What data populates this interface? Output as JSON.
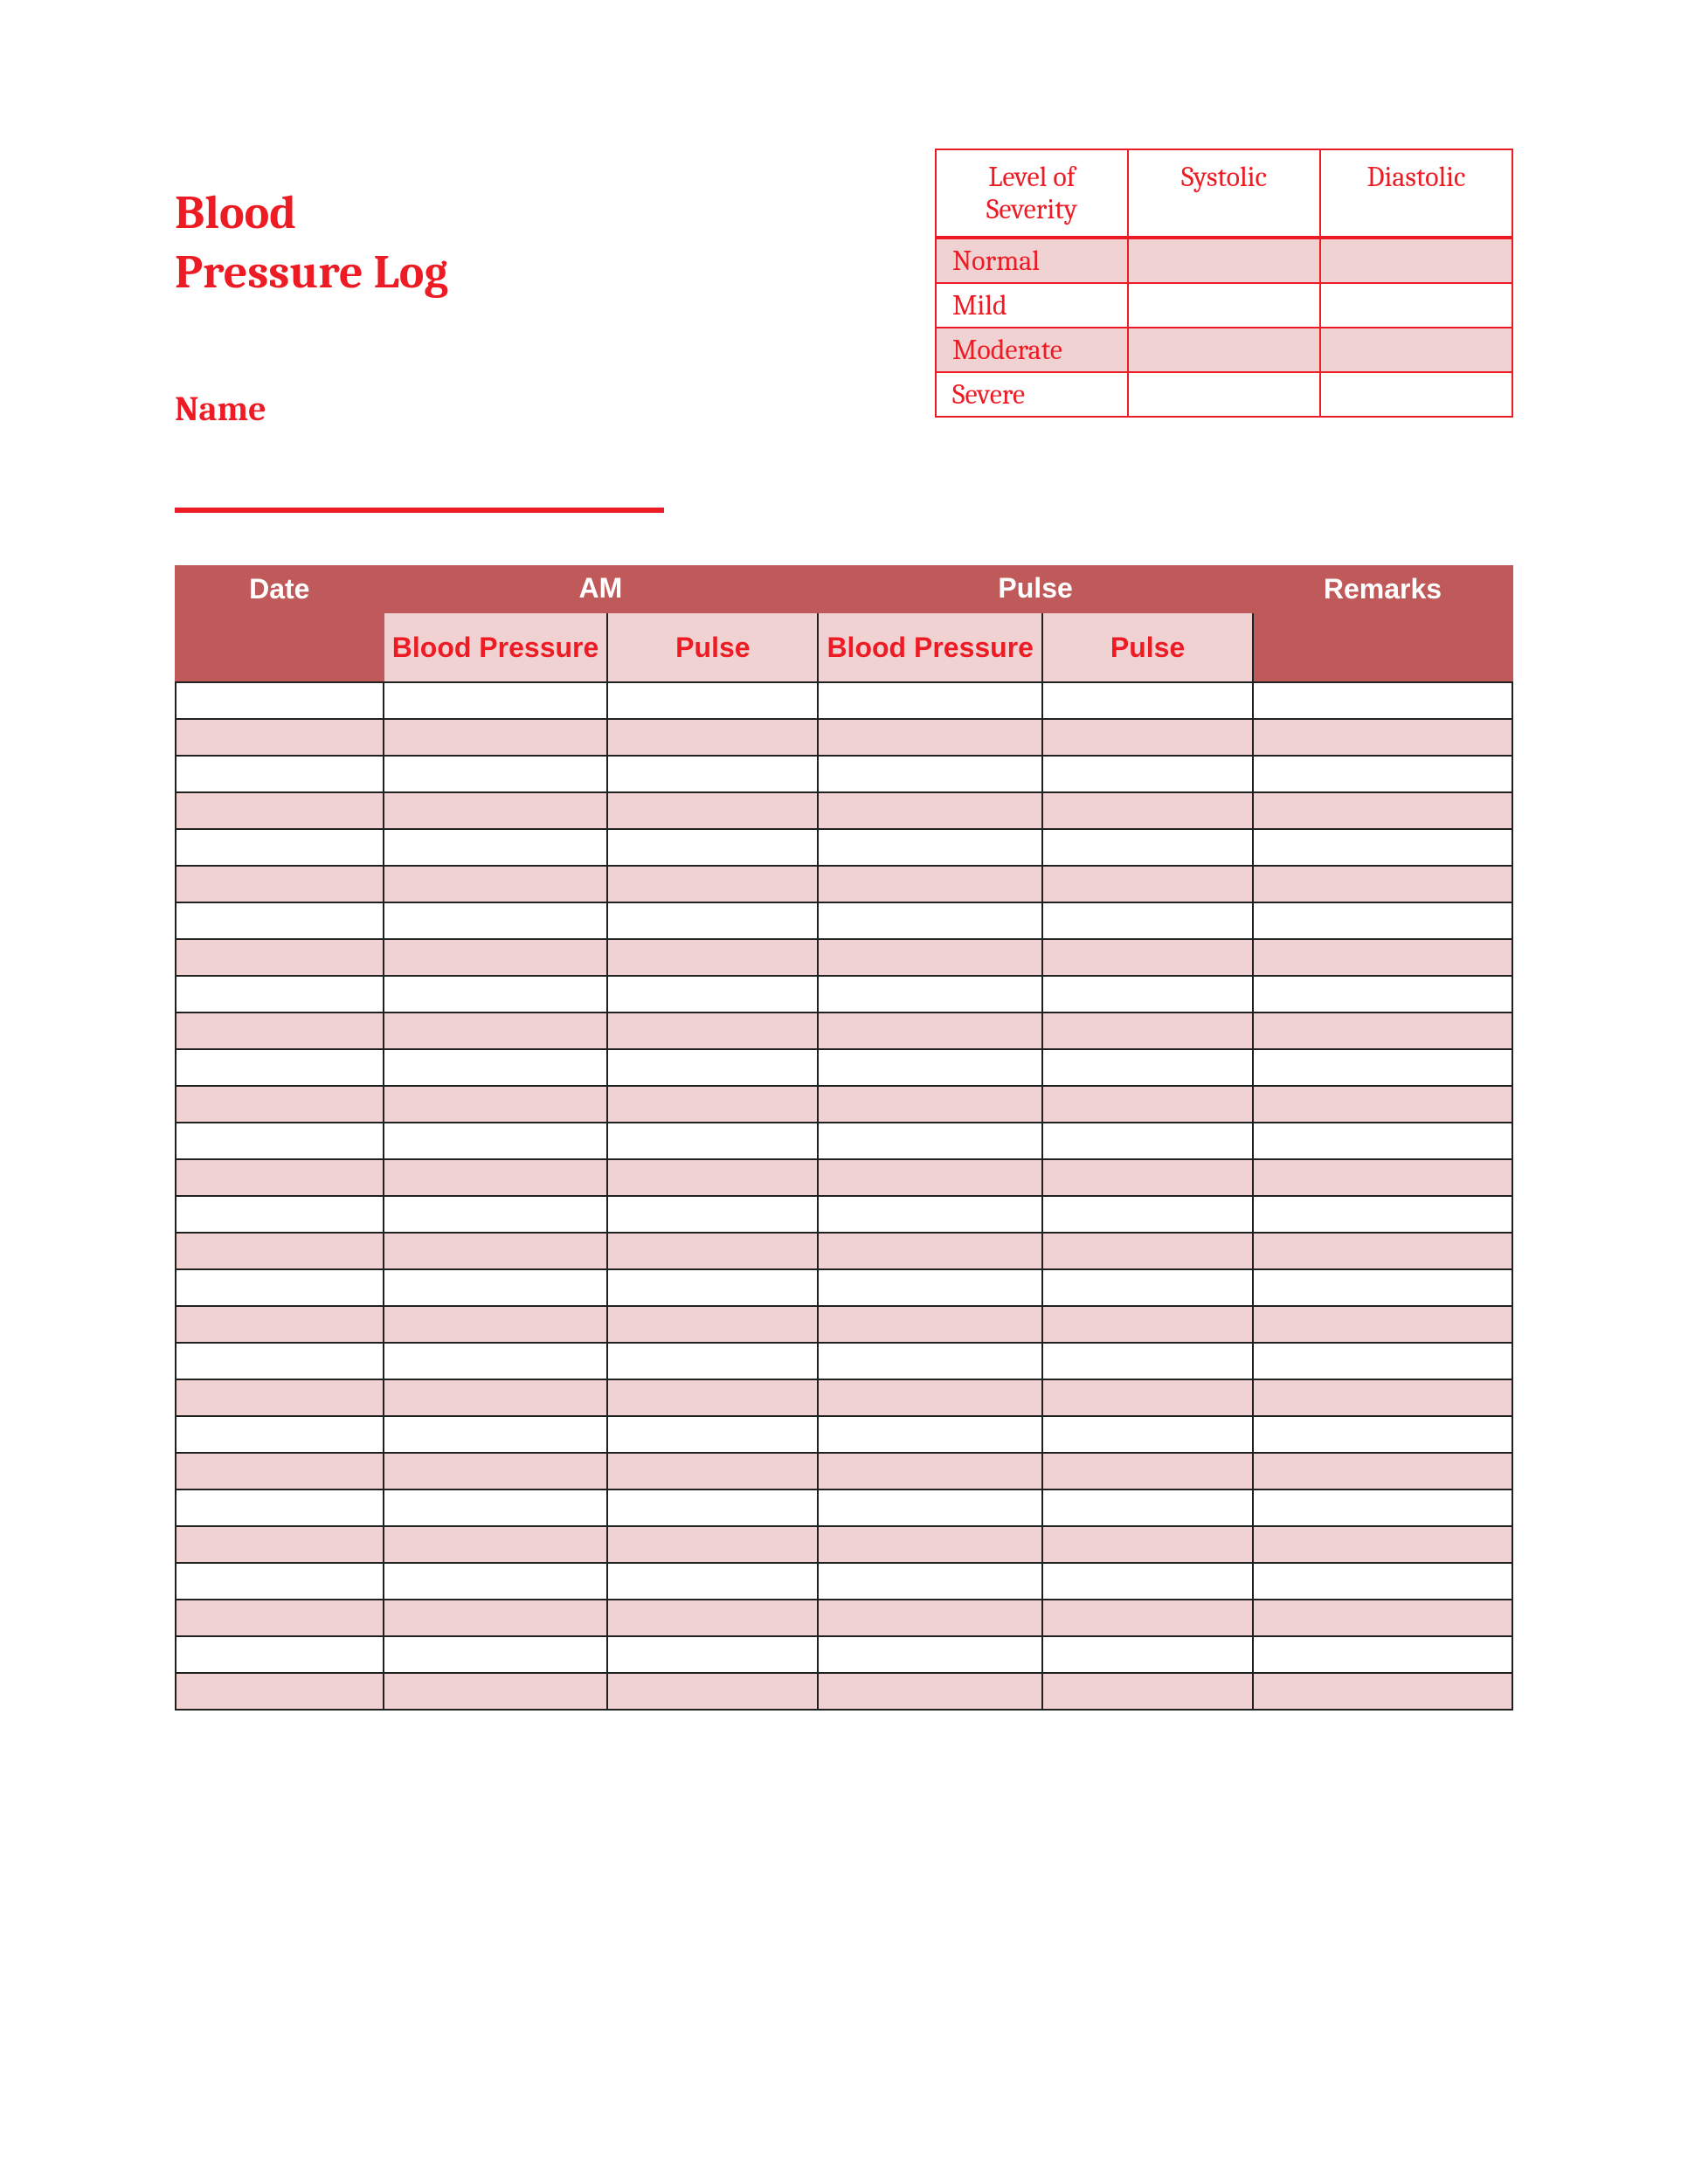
{
  "title_line1": "Blood",
  "title_line2": "Pressure Log",
  "name_label": "Name",
  "severity_table": {
    "headers": [
      "Level of Severity",
      "Systolic",
      "Diastolic"
    ],
    "rows": [
      {
        "label": "Normal",
        "systolic": "",
        "diastolic": "",
        "shaded": true
      },
      {
        "label": "Mild",
        "systolic": "",
        "diastolic": "",
        "shaded": false
      },
      {
        "label": "Moderate",
        "systolic": "",
        "diastolic": "",
        "shaded": true
      },
      {
        "label": "Severe",
        "systolic": "",
        "diastolic": "",
        "shaded": false
      }
    ]
  },
  "log_table": {
    "header_row1": {
      "date": "Date",
      "am": "AM",
      "pm": "Pulse",
      "remarks": "Remarks"
    },
    "header_row2": {
      "am_bp": "Blood Pressure",
      "am_pulse": "Pulse",
      "pm_bp": "Blood Pressure",
      "pm_pulse": "Pulse"
    },
    "row_count": 28,
    "columns": [
      "date",
      "am_bp",
      "am_pulse",
      "pm_bp",
      "pm_pulse",
      "remarks"
    ]
  },
  "colors": {
    "accent_red": "#ed1c24",
    "header_bg": "#c05a5a",
    "shade_bg": "#f1d2d2",
    "border_dark": "#202020",
    "white": "#ffffff"
  }
}
